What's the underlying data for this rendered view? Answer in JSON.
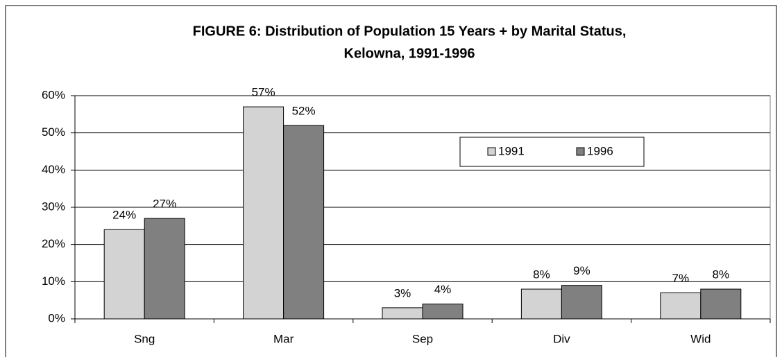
{
  "chart_data": {
    "type": "bar",
    "title": [
      "FIGURE 6: Distribution of Population 15 Years + by Marital Status,",
      "Kelowna, 1991-1996"
    ],
    "categories": [
      "Sng",
      "Mar",
      "Sep",
      "Div",
      "Wid"
    ],
    "series": [
      {
        "name": "1991",
        "color": "#d3d3d3",
        "values": [
          24,
          57,
          3,
          8,
          7
        ],
        "value_labels": [
          "24%",
          "57%",
          "3%",
          "8%",
          "7%"
        ]
      },
      {
        "name": "1996",
        "color": "#808080",
        "values": [
          27,
          52,
          4,
          9,
          8
        ],
        "value_labels": [
          "27%",
          "52%",
          "4%",
          "9%",
          "8%"
        ]
      }
    ],
    "ylim": [
      0,
      60
    ],
    "yticks": [
      {
        "value": 0,
        "label": "0%"
      },
      {
        "value": 10,
        "label": "10%"
      },
      {
        "value": 20,
        "label": "20%"
      },
      {
        "value": 30,
        "label": "30%"
      },
      {
        "value": 40,
        "label": "40%"
      },
      {
        "value": 50,
        "label": "50%"
      },
      {
        "value": 60,
        "label": "60%"
      }
    ],
    "grid": true,
    "legend": "upper right"
  }
}
